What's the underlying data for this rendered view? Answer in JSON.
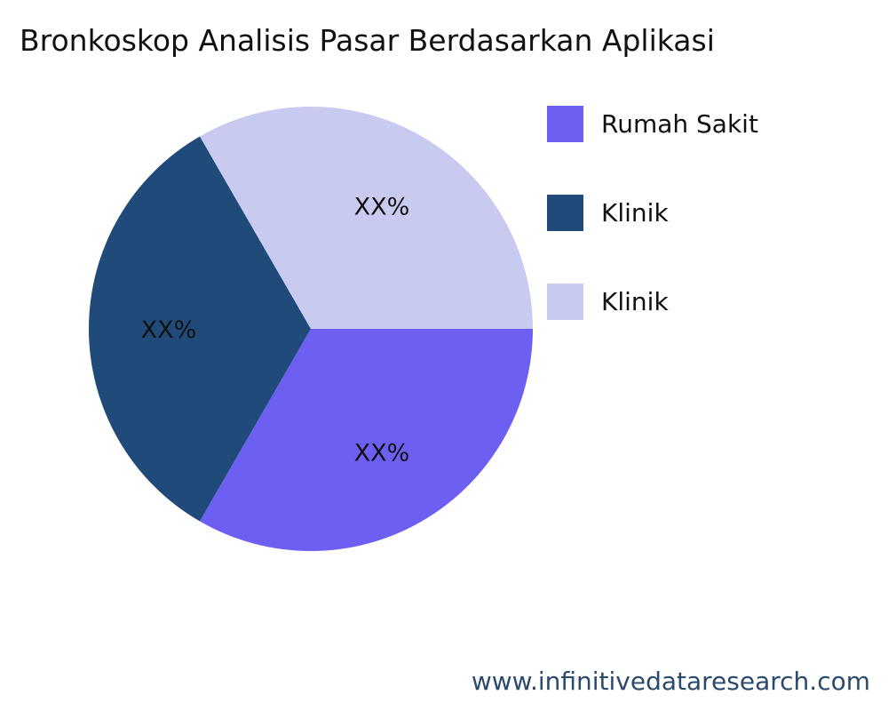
{
  "title": "Bronkoskop Analisis Pasar Berdasarkan Aplikasi",
  "chart_data": {
    "type": "pie",
    "title": "Bronkoskop Analisis Pasar Berdasarkan Aplikasi",
    "slices": [
      {
        "name": "Rumah Sakit",
        "value": 33.33,
        "label": "XX%",
        "color": "#6c5ff2"
      },
      {
        "name": "Klinik",
        "value": 33.33,
        "label": "XX%",
        "color": "#1f4a7a"
      },
      {
        "name": "Klinik",
        "value": 33.33,
        "label": "XX%",
        "color": "#c9caf0"
      }
    ],
    "legend_position": "right"
  },
  "footer": "www.infinitivedataresearch.com"
}
